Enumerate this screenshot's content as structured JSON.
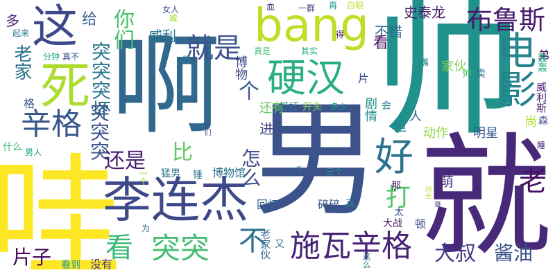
{
  "words": [
    {
      "text": "啊",
      "color": "#30688e"
    },
    {
      "text": "男",
      "color": "#3b528b"
    },
    {
      "text": "帅",
      "color": "#21918c"
    },
    {
      "text": "就",
      "color": "#482878"
    },
    {
      "text": "哇",
      "color": "#fde725"
    },
    {
      "text": "这",
      "color": "#3e4989"
    },
    {
      "text": "李连杰",
      "color": "#3e4989"
    },
    {
      "text": "bang",
      "color": "#bddf26"
    },
    {
      "text": "死",
      "color": "#addc30"
    },
    {
      "text": "硬汉",
      "color": "#29af7f"
    },
    {
      "text": "电影",
      "color": "#25838e"
    },
    {
      "text": "施瓦辛格",
      "color": "#482475"
    },
    {
      "text": "辛格",
      "color": "#38588c"
    },
    {
      "text": "就是",
      "color": "#3b528b"
    },
    {
      "text": "好",
      "color": "#2c728e"
    },
    {
      "text": "布鲁斯",
      "color": "#481b6d"
    },
    {
      "text": "突突",
      "color": "#44bf70"
    },
    {
      "text": "不",
      "color": "#2d708e"
    },
    {
      "text": "看",
      "color": "#3aba76"
    },
    {
      "text": "打",
      "color": "#52c569"
    },
    {
      "text": "你们",
      "color": "#4ac16d"
    },
    {
      "text": "老家",
      "color": "#2c728e"
    },
    {
      "text": "突突突坏",
      "color": "#2a768e"
    },
    {
      "text": "个",
      "color": "#365c8d"
    },
    {
      "text": "突突突",
      "color": "#3b528b"
    },
    {
      "text": "还是",
      "color": "#481f70"
    },
    {
      "text": "比",
      "color": "#5ec962"
    },
    {
      "text": "怎么",
      "color": "#3e4a89"
    },
    {
      "text": "大叔",
      "color": "#443983"
    },
    {
      "text": "酱油",
      "color": "#3b528b"
    },
    {
      "text": "老",
      "color": "#471063"
    },
    {
      "text": "片子",
      "color": "#450457"
    },
    {
      "text": "史泰龙",
      "color": "#481f70"
    },
    {
      "text": "给",
      "color": "#34618d"
    },
    {
      "text": "多",
      "color": "#482878"
    },
    {
      "text": "博物",
      "color": "#3f4788"
    },
    {
      "text": "威利",
      "color": "#2a778e"
    },
    {
      "text": "不错",
      "color": "#31688e"
    },
    {
      "text": "家伙",
      "color": "#7ad151"
    },
    {
      "text": "看",
      "color": "#471063"
    },
    {
      "text": "动作",
      "color": "#90d743"
    },
    {
      "text": "明星",
      "color": "#365c8d"
    },
    {
      "text": "尚",
      "color": "#b8de29"
    },
    {
      "text": "萌",
      "color": "#472d7b"
    },
    {
      "text": "进",
      "color": "#414487"
    },
    {
      "text": "但",
      "color": "#24868e"
    },
    {
      "text": "人",
      "color": "#355f8d"
    },
    {
      "text": "剧情",
      "color": "#21918c"
    },
    {
      "text": "还有",
      "color": "#65cb5e"
    },
    {
      "text": "打打",
      "color": "#2a788e"
    },
    {
      "text": "开头",
      "color": "#85d54a"
    },
    {
      "text": "多少",
      "color": "#1fa188"
    },
    {
      "text": "格",
      "color": "#39568c"
    },
    {
      "text": "片",
      "color": "#3e4a89"
    },
    {
      "text": "弟",
      "color": "#440154"
    },
    {
      "text": "威利斯",
      "color": "#481b6d"
    },
    {
      "text": "轰轰",
      "color": "#22a785"
    },
    {
      "text": "森",
      "color": "#3b528b"
    },
    {
      "text": "睡",
      "color": "#482475"
    },
    {
      "text": "碎碎",
      "color": "#3b528b"
    },
    {
      "text": "真",
      "color": "#26828e"
    },
    {
      "text": "回忆",
      "color": "#34618d"
    },
    {
      "text": "顿",
      "color": "#3e4989"
    },
    {
      "text": "大战",
      "color": "#481769"
    },
    {
      "text": "太",
      "color": "#3b528b"
    },
    {
      "text": "那",
      "color": "#481668"
    },
    {
      "text": "三个",
      "color": "#1f9f88"
    },
    {
      "text": "猛男",
      "color": "#2e6f8e"
    },
    {
      "text": "锤",
      "color": "#2c738e"
    },
    {
      "text": "博物馆",
      "color": "#2c738e"
    },
    {
      "text": "一个",
      "color": "#addc30"
    },
    {
      "text": "什么",
      "color": "#35b779"
    },
    {
      "text": "男人",
      "color": "#1fa088"
    },
    {
      "text": "没有",
      "color": "#453882"
    },
    {
      "text": "看到",
      "color": "#1f9a8a"
    },
    {
      "text": "为",
      "color": "#2e6e8e"
    },
    {
      "text": "老家伙",
      "color": "#31688e"
    },
    {
      "text": "又",
      "color": "#2a768e"
    },
    {
      "text": "这么",
      "color": "#287d8e"
    },
    {
      "text": "起来",
      "color": "#2a768e"
    },
    {
      "text": "分钟",
      "color": "#1f9e89"
    },
    {
      "text": "真不",
      "color": "#3b528b"
    },
    {
      "text": "女人",
      "color": "#3f4788"
    },
    {
      "text": "威",
      "color": "#a0da39"
    },
    {
      "text": "血",
      "color": "#472a7a"
    },
    {
      "text": "一群",
      "color": "#46337e"
    },
    {
      "text": "再",
      "color": "#1f9a8a"
    },
    {
      "text": "白眼",
      "color": "#bddf26"
    },
    {
      "text": "云",
      "color": "#297b8e"
    },
    {
      "text": "真是",
      "color": "#3dbc74"
    },
    {
      "text": "其实",
      "color": "#2ab07f"
    },
    {
      "text": "得",
      "color": "#471164"
    },
    {
      "text": "会",
      "color": "#23898e"
    },
    {
      "text": "嘴",
      "color": "#238a8d"
    },
    {
      "text": "卖",
      "color": "#2a768e"
    },
    {
      "text": "帅",
      "color": "#4cc26c"
    },
    {
      "text": "爷们",
      "color": "#3f4788"
    },
    {
      "text": "重",
      "color": "#31688e"
    },
    {
      "text": "州长",
      "color": "#c0df25"
    },
    {
      "text": "哥",
      "color": "#453781"
    }
  ]
}
